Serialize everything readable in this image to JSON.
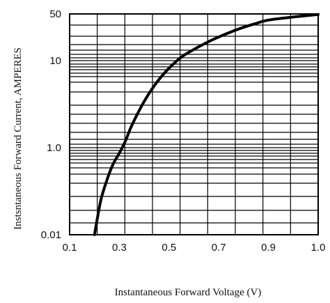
{
  "chart_data": {
    "type": "line",
    "xlabel": "Instantaneous Forward Voltage (V)",
    "ylabel": "Instsntaneous Forward Current, AMPERES",
    "y_scale": "log",
    "grid": true,
    "xlim": [
      0.1,
      1.0
    ],
    "ylim": [
      0.01,
      50
    ],
    "x_ticks": [
      "0.1",
      "0.3",
      "0.5",
      "0.7",
      "0.9",
      "1.0"
    ],
    "x_tick_values": [
      0.1,
      0.3,
      0.5,
      0.7,
      0.9,
      1.0
    ],
    "y_ticks": [
      "0.01",
      "1.0",
      "10",
      "50"
    ],
    "y_tick_values": [
      0.01,
      1.0,
      10,
      50
    ],
    "series": [
      {
        "x": [
          0.2,
          0.225,
          0.25,
          0.275,
          0.3,
          0.325,
          0.35,
          0.4,
          0.45,
          0.5,
          0.55,
          0.6,
          0.65,
          0.7,
          0.75,
          0.8,
          0.85,
          0.9,
          0.95,
          1.0
        ],
        "y": [
          0.01,
          0.06,
          0.18,
          0.42,
          0.75,
          1.2,
          1.8,
          3.4,
          5.6,
          8.2,
          11.3,
          14.7,
          18.5,
          22.6,
          27.0,
          31.5,
          36.0,
          40.5,
          45.0,
          49.0
        ]
      }
    ]
  }
}
